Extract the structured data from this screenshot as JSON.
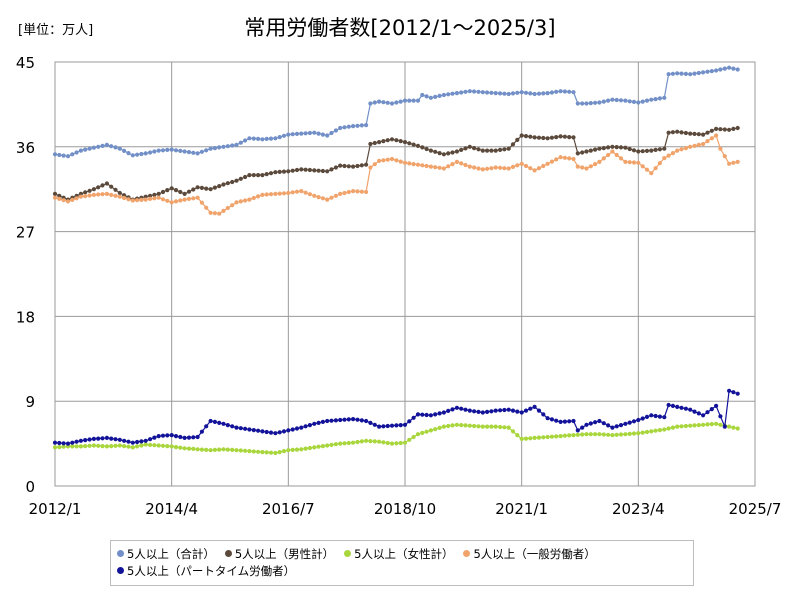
{
  "unit_label": "[単位：万人]",
  "chart_data": {
    "type": "line",
    "title": "常用労働者数[2012/1～2025/3]",
    "xlabel": "",
    "ylabel": "",
    "x_ticks": [
      "2012/1",
      "2014/4",
      "2016/7",
      "2018/10",
      "2021/1",
      "2023/4",
      "2025/7"
    ],
    "y_ticks": [
      "0",
      "9",
      "18",
      "27",
      "36",
      "45"
    ],
    "ylim": [
      0,
      45
    ],
    "xlim": [
      "2012-01",
      "2025-07"
    ],
    "grid": true,
    "legend_position": "bottom",
    "series": [
      {
        "name": "5人以上（合計）",
        "color": "#7290c7",
        "points": [
          [
            "2012-01",
            35.2
          ],
          [
            "2012-04",
            35.0
          ],
          [
            "2012-07",
            35.6
          ],
          [
            "2012-10",
            35.9
          ],
          [
            "2013-01",
            36.2
          ],
          [
            "2013-04",
            35.8
          ],
          [
            "2013-07",
            35.1
          ],
          [
            "2013-10",
            35.3
          ],
          [
            "2014-01",
            35.6
          ],
          [
            "2014-04",
            35.7
          ],
          [
            "2014-07",
            35.5
          ],
          [
            "2014-10",
            35.3
          ],
          [
            "2015-01",
            35.8
          ],
          [
            "2015-04",
            36.0
          ],
          [
            "2015-07",
            36.2
          ],
          [
            "2015-10",
            36.9
          ],
          [
            "2016-01",
            36.8
          ],
          [
            "2016-04",
            36.9
          ],
          [
            "2016-07",
            37.3
          ],
          [
            "2016-10",
            37.4
          ],
          [
            "2017-01",
            37.5
          ],
          [
            "2017-04",
            37.2
          ],
          [
            "2017-07",
            38.0
          ],
          [
            "2017-10",
            38.2
          ],
          [
            "2018-01",
            38.3
          ],
          [
            "2018-02",
            40.6
          ],
          [
            "2018-04",
            40.8
          ],
          [
            "2018-07",
            40.6
          ],
          [
            "2018-10",
            40.9
          ],
          [
            "2019-01",
            40.9
          ],
          [
            "2019-02",
            41.5
          ],
          [
            "2019-04",
            41.2
          ],
          [
            "2019-07",
            41.5
          ],
          [
            "2019-10",
            41.7
          ],
          [
            "2020-01",
            41.9
          ],
          [
            "2020-04",
            41.8
          ],
          [
            "2020-07",
            41.7
          ],
          [
            "2020-10",
            41.6
          ],
          [
            "2021-01",
            41.8
          ],
          [
            "2021-04",
            41.6
          ],
          [
            "2021-07",
            41.7
          ],
          [
            "2021-10",
            41.9
          ],
          [
            "2022-01",
            41.8
          ],
          [
            "2022-02",
            40.6
          ],
          [
            "2022-04",
            40.6
          ],
          [
            "2022-07",
            40.7
          ],
          [
            "2022-10",
            41.0
          ],
          [
            "2023-01",
            40.9
          ],
          [
            "2023-04",
            40.7
          ],
          [
            "2023-07",
            41.0
          ],
          [
            "2023-10",
            41.2
          ],
          [
            "2023-11",
            43.7
          ],
          [
            "2024-01",
            43.8
          ],
          [
            "2024-04",
            43.7
          ],
          [
            "2024-07",
            43.9
          ],
          [
            "2024-10",
            44.1
          ],
          [
            "2025-01",
            44.4
          ],
          [
            "2025-03",
            44.2
          ]
        ]
      },
      {
        "name": "5人以上（男性計）",
        "color": "#5b4a3c",
        "points": [
          [
            "2012-01",
            31.0
          ],
          [
            "2012-04",
            30.4
          ],
          [
            "2012-07",
            31.0
          ],
          [
            "2012-10",
            31.5
          ],
          [
            "2013-01",
            32.1
          ],
          [
            "2013-04",
            31.1
          ],
          [
            "2013-07",
            30.4
          ],
          [
            "2013-10",
            30.7
          ],
          [
            "2014-01",
            31.0
          ],
          [
            "2014-04",
            31.6
          ],
          [
            "2014-07",
            31.0
          ],
          [
            "2014-10",
            31.7
          ],
          [
            "2015-01",
            31.5
          ],
          [
            "2015-04",
            32.0
          ],
          [
            "2015-07",
            32.4
          ],
          [
            "2015-10",
            33.0
          ],
          [
            "2016-01",
            33.0
          ],
          [
            "2016-04",
            33.3
          ],
          [
            "2016-07",
            33.4
          ],
          [
            "2016-10",
            33.6
          ],
          [
            "2017-01",
            33.5
          ],
          [
            "2017-04",
            33.4
          ],
          [
            "2017-07",
            34.0
          ],
          [
            "2017-10",
            33.9
          ],
          [
            "2018-01",
            34.1
          ],
          [
            "2018-02",
            36.3
          ],
          [
            "2018-04",
            36.5
          ],
          [
            "2018-07",
            36.8
          ],
          [
            "2018-10",
            36.5
          ],
          [
            "2019-01",
            36.1
          ],
          [
            "2019-04",
            35.6
          ],
          [
            "2019-07",
            35.2
          ],
          [
            "2019-10",
            35.5
          ],
          [
            "2020-01",
            36.0
          ],
          [
            "2020-04",
            35.6
          ],
          [
            "2020-07",
            35.6
          ],
          [
            "2020-10",
            35.8
          ],
          [
            "2021-01",
            37.2
          ],
          [
            "2021-04",
            37.0
          ],
          [
            "2021-07",
            36.9
          ],
          [
            "2021-10",
            37.1
          ],
          [
            "2022-01",
            37.0
          ],
          [
            "2022-02",
            35.3
          ],
          [
            "2022-04",
            35.5
          ],
          [
            "2022-07",
            35.8
          ],
          [
            "2022-10",
            36.0
          ],
          [
            "2023-01",
            35.9
          ],
          [
            "2023-04",
            35.5
          ],
          [
            "2023-07",
            35.6
          ],
          [
            "2023-10",
            35.8
          ],
          [
            "2023-11",
            37.5
          ],
          [
            "2024-01",
            37.6
          ],
          [
            "2024-04",
            37.4
          ],
          [
            "2024-07",
            37.3
          ],
          [
            "2024-10",
            37.9
          ],
          [
            "2025-01",
            37.8
          ],
          [
            "2025-03",
            38.0
          ]
        ]
      },
      {
        "name": "5人以上（女性計）",
        "color": "#a8d63c",
        "points": [
          [
            "2012-01",
            4.1
          ],
          [
            "2012-04",
            4.2
          ],
          [
            "2012-07",
            4.2
          ],
          [
            "2012-10",
            4.3
          ],
          [
            "2013-01",
            4.2
          ],
          [
            "2013-04",
            4.3
          ],
          [
            "2013-07",
            4.1
          ],
          [
            "2013-10",
            4.4
          ],
          [
            "2014-01",
            4.3
          ],
          [
            "2014-04",
            4.2
          ],
          [
            "2014-07",
            4.0
          ],
          [
            "2014-10",
            3.9
          ],
          [
            "2015-01",
            3.8
          ],
          [
            "2015-04",
            3.9
          ],
          [
            "2015-07",
            3.8
          ],
          [
            "2015-10",
            3.7
          ],
          [
            "2016-01",
            3.6
          ],
          [
            "2016-04",
            3.5
          ],
          [
            "2016-07",
            3.8
          ],
          [
            "2016-10",
            3.9
          ],
          [
            "2017-01",
            4.1
          ],
          [
            "2017-04",
            4.3
          ],
          [
            "2017-07",
            4.5
          ],
          [
            "2017-10",
            4.6
          ],
          [
            "2018-01",
            4.8
          ],
          [
            "2018-04",
            4.7
          ],
          [
            "2018-07",
            4.5
          ],
          [
            "2018-10",
            4.6
          ],
          [
            "2019-01",
            5.5
          ],
          [
            "2019-04",
            5.9
          ],
          [
            "2019-07",
            6.3
          ],
          [
            "2019-10",
            6.5
          ],
          [
            "2020-01",
            6.4
          ],
          [
            "2020-04",
            6.3
          ],
          [
            "2020-07",
            6.3
          ],
          [
            "2020-10",
            6.2
          ],
          [
            "2021-01",
            5.0
          ],
          [
            "2021-04",
            5.1
          ],
          [
            "2021-07",
            5.2
          ],
          [
            "2021-10",
            5.3
          ],
          [
            "2022-01",
            5.4
          ],
          [
            "2022-04",
            5.5
          ],
          [
            "2022-07",
            5.5
          ],
          [
            "2022-10",
            5.4
          ],
          [
            "2023-01",
            5.5
          ],
          [
            "2023-04",
            5.6
          ],
          [
            "2023-07",
            5.8
          ],
          [
            "2023-10",
            6.0
          ],
          [
            "2024-01",
            6.3
          ],
          [
            "2024-04",
            6.4
          ],
          [
            "2024-07",
            6.5
          ],
          [
            "2024-10",
            6.6
          ],
          [
            "2025-01",
            6.3
          ],
          [
            "2025-03",
            6.1
          ]
        ]
      },
      {
        "name": "5人以上（一般労働者）",
        "color": "#f0a36b",
        "points": [
          [
            "2012-01",
            30.6
          ],
          [
            "2012-04",
            30.2
          ],
          [
            "2012-07",
            30.7
          ],
          [
            "2012-10",
            30.9
          ],
          [
            "2013-01",
            31.0
          ],
          [
            "2013-04",
            30.7
          ],
          [
            "2013-07",
            30.3
          ],
          [
            "2013-10",
            30.4
          ],
          [
            "2014-01",
            30.6
          ],
          [
            "2014-04",
            30.1
          ],
          [
            "2014-07",
            30.4
          ],
          [
            "2014-10",
            30.6
          ],
          [
            "2015-01",
            29.0
          ],
          [
            "2015-03",
            28.9
          ],
          [
            "2015-07",
            30.1
          ],
          [
            "2015-10",
            30.4
          ],
          [
            "2016-01",
            30.9
          ],
          [
            "2016-04",
            31.0
          ],
          [
            "2016-07",
            31.1
          ],
          [
            "2016-10",
            31.3
          ],
          [
            "2017-01",
            30.8
          ],
          [
            "2017-04",
            30.4
          ],
          [
            "2017-07",
            31.0
          ],
          [
            "2017-10",
            31.3
          ],
          [
            "2018-01",
            31.2
          ],
          [
            "2018-02",
            33.8
          ],
          [
            "2018-04",
            34.5
          ],
          [
            "2018-07",
            34.7
          ],
          [
            "2018-10",
            34.3
          ],
          [
            "2019-01",
            34.1
          ],
          [
            "2019-04",
            33.9
          ],
          [
            "2019-07",
            33.7
          ],
          [
            "2019-10",
            34.4
          ],
          [
            "2020-01",
            33.9
          ],
          [
            "2020-04",
            33.6
          ],
          [
            "2020-07",
            33.8
          ],
          [
            "2020-10",
            33.7
          ],
          [
            "2021-01",
            34.2
          ],
          [
            "2021-04",
            33.5
          ],
          [
            "2021-07",
            34.2
          ],
          [
            "2021-10",
            34.9
          ],
          [
            "2022-01",
            34.7
          ],
          [
            "2022-02",
            33.9
          ],
          [
            "2022-04",
            33.7
          ],
          [
            "2022-07",
            34.4
          ],
          [
            "2022-10",
            35.5
          ],
          [
            "2023-01",
            34.4
          ],
          [
            "2023-04",
            34.3
          ],
          [
            "2023-07",
            33.2
          ],
          [
            "2023-10",
            34.8
          ],
          [
            "2024-01",
            35.6
          ],
          [
            "2024-04",
            36.0
          ],
          [
            "2024-07",
            36.3
          ],
          [
            "2024-10",
            37.2
          ],
          [
            "2024-11",
            35.8
          ],
          [
            "2025-01",
            34.2
          ],
          [
            "2025-03",
            34.4
          ]
        ]
      },
      {
        "name": "5人以上（パートタイム労働者）",
        "color": "#13139a",
        "points": [
          [
            "2012-01",
            4.6
          ],
          [
            "2012-04",
            4.5
          ],
          [
            "2012-07",
            4.8
          ],
          [
            "2012-10",
            5.0
          ],
          [
            "2013-01",
            5.1
          ],
          [
            "2013-04",
            4.9
          ],
          [
            "2013-07",
            4.6
          ],
          [
            "2013-10",
            4.8
          ],
          [
            "2014-01",
            5.3
          ],
          [
            "2014-04",
            5.4
          ],
          [
            "2014-07",
            5.1
          ],
          [
            "2014-10",
            5.2
          ],
          [
            "2015-01",
            6.9
          ],
          [
            "2015-04",
            6.6
          ],
          [
            "2015-07",
            6.2
          ],
          [
            "2015-10",
            6.0
          ],
          [
            "2016-01",
            5.8
          ],
          [
            "2016-04",
            5.6
          ],
          [
            "2016-07",
            5.9
          ],
          [
            "2016-10",
            6.2
          ],
          [
            "2017-01",
            6.6
          ],
          [
            "2017-04",
            6.9
          ],
          [
            "2017-07",
            7.0
          ],
          [
            "2017-10",
            7.1
          ],
          [
            "2018-01",
            6.9
          ],
          [
            "2018-04",
            6.3
          ],
          [
            "2018-07",
            6.4
          ],
          [
            "2018-10",
            6.5
          ],
          [
            "2019-01",
            7.6
          ],
          [
            "2019-04",
            7.5
          ],
          [
            "2019-07",
            7.8
          ],
          [
            "2019-10",
            8.3
          ],
          [
            "2020-01",
            8.0
          ],
          [
            "2020-04",
            7.8
          ],
          [
            "2020-07",
            8.0
          ],
          [
            "2020-10",
            8.1
          ],
          [
            "2021-01",
            7.8
          ],
          [
            "2021-04",
            8.4
          ],
          [
            "2021-07",
            7.2
          ],
          [
            "2021-10",
            6.8
          ],
          [
            "2022-01",
            6.9
          ],
          [
            "2022-02",
            5.9
          ],
          [
            "2022-04",
            6.5
          ],
          [
            "2022-07",
            6.9
          ],
          [
            "2022-10",
            6.2
          ],
          [
            "2023-01",
            6.6
          ],
          [
            "2023-04",
            7.0
          ],
          [
            "2023-07",
            7.5
          ],
          [
            "2023-10",
            7.3
          ],
          [
            "2023-11",
            8.6
          ],
          [
            "2024-01",
            8.4
          ],
          [
            "2024-04",
            8.1
          ],
          [
            "2024-07",
            7.5
          ],
          [
            "2024-10",
            8.5
          ],
          [
            "2024-12",
            6.3
          ],
          [
            "2025-01",
            10.1
          ],
          [
            "2025-03",
            9.8
          ]
        ]
      }
    ]
  }
}
